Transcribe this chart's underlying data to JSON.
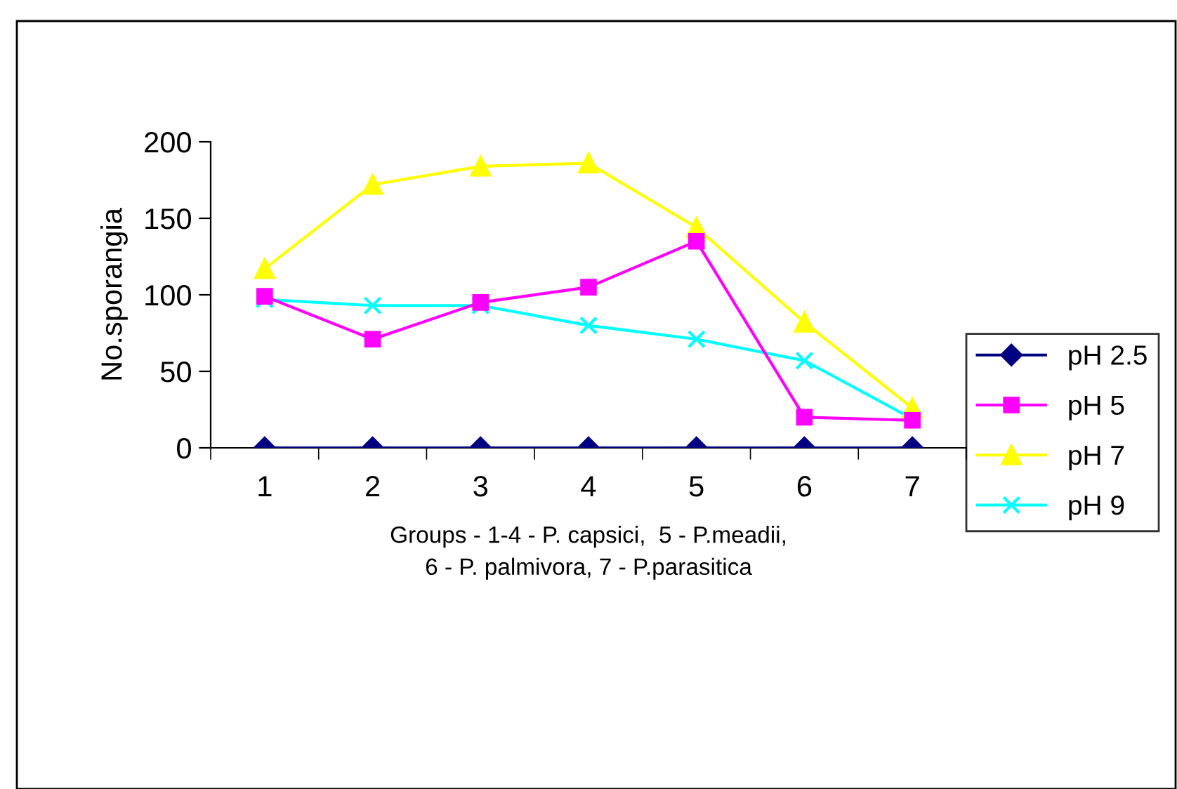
{
  "chart_data": {
    "type": "line",
    "ylabel": "No.sporangia",
    "xlabel": "Groups - 1-4 - P. capsici,  5 - P.meadii,\n6 - P. palmivora, 7 - P.parasitica",
    "categories": [
      "1",
      "2",
      "3",
      "4",
      "5",
      "6",
      "7"
    ],
    "series": [
      {
        "name": "pH 2.5",
        "color": "#000080",
        "marker": "diamond",
        "values": [
          0,
          0,
          0,
          0,
          0,
          0,
          0
        ]
      },
      {
        "name": "pH 5",
        "color": "#ff00ff",
        "marker": "square",
        "values": [
          99,
          71,
          95,
          105,
          135,
          20,
          18
        ]
      },
      {
        "name": "pH 7",
        "color": "#ffff00",
        "marker": "triangle",
        "values": [
          117,
          172,
          184,
          186,
          144,
          82,
          26
        ]
      },
      {
        "name": "pH 9",
        "color": "#00ffff",
        "marker": "cross",
        "values": [
          97,
          93,
          93,
          80,
          71,
          57,
          19
        ]
      }
    ],
    "ylim": [
      0,
      200
    ],
    "yticks": [
      0,
      50,
      100,
      150,
      200
    ],
    "grid": false,
    "legend": "right",
    "line_style": "solid"
  }
}
